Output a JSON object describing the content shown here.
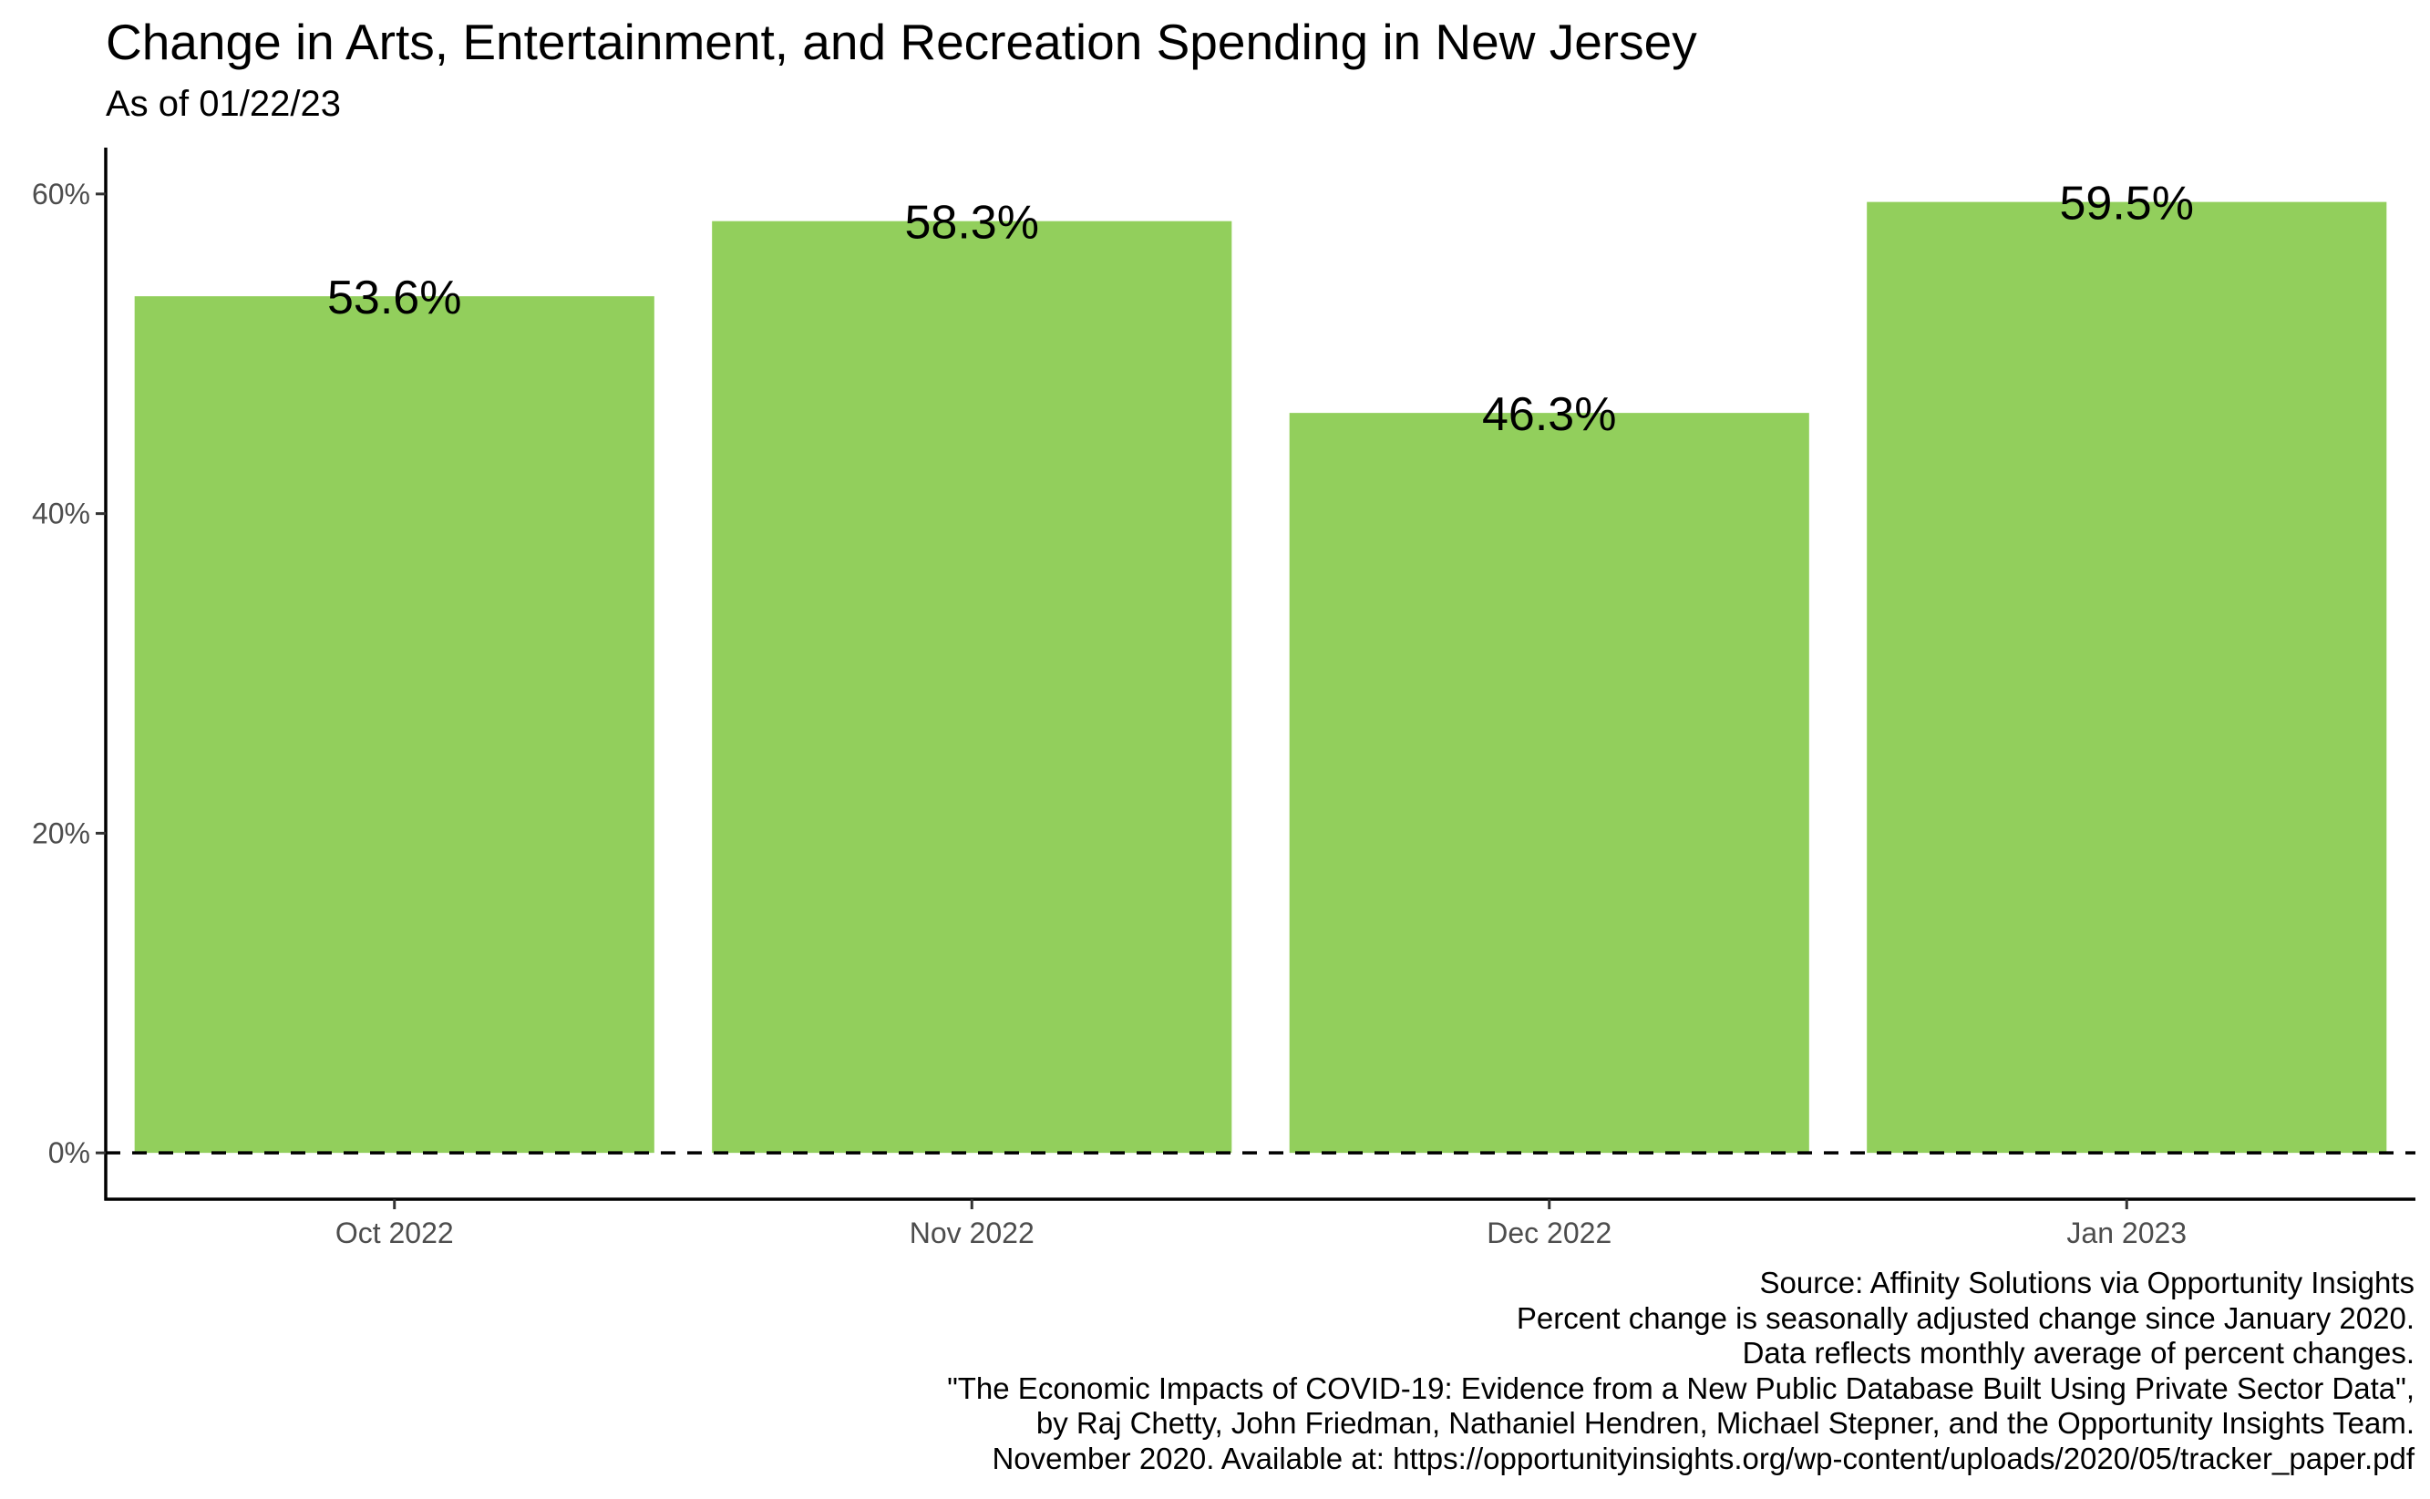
{
  "title": "Change in Arts, Entertainment, and Recreation Spending in New Jersey",
  "subtitle": "As of 01/22/23",
  "caption_lines": [
    "Source: Affinity Solutions via Opportunity Insights",
    "Percent change is seasonally adjusted change since January 2020.",
    "Data reflects monthly average of percent changes.",
    "\"The Economic Impacts of COVID-19: Evidence from a New Public Database Built Using Private Sector Data\",",
    "by Raj Chetty, John Friedman, Nathaniel Hendren, Michael Stepner, and the Opportunity Insights Team.",
    "November 2020. Available at: https://opportunityinsights.org/wp-content/uploads/2020/05/tracker_paper.pdf"
  ],
  "colors": {
    "bar": "#92CF5C",
    "axis": "#000000",
    "tick_text": "#4d4d4d"
  },
  "chart_data": {
    "type": "bar",
    "categories": [
      "Oct 2022",
      "Nov 2022",
      "Dec 2022",
      "Jan 2023"
    ],
    "values": [
      53.6,
      58.3,
      46.3,
      59.5
    ],
    "data_labels": [
      "53.6%",
      "58.3%",
      "46.3%",
      "59.5%"
    ],
    "yticks": [
      0,
      20,
      40,
      60
    ],
    "ytick_labels": [
      "0%",
      "20%",
      "40%",
      "60%"
    ],
    "ylim": [
      -2.9,
      62.9
    ],
    "xlabel": "",
    "ylabel": "",
    "reference_line": {
      "y": 0,
      "style": "dashed"
    },
    "grid": false,
    "legend": "none"
  }
}
